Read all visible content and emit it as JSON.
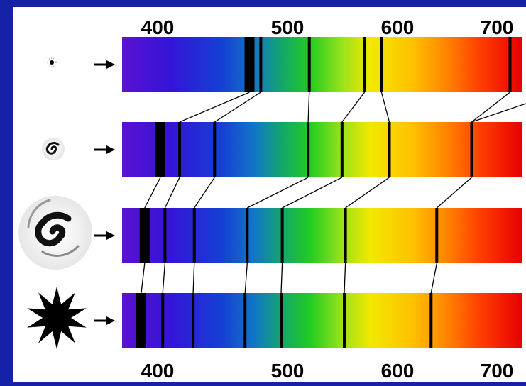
{
  "scale_top": {
    "ticks": [
      "400",
      "500",
      "600",
      "700"
    ]
  },
  "scale_bottom": {
    "ticks": [
      "400",
      "500",
      "600",
      "700"
    ]
  },
  "rows": [
    {
      "icon": "small-star-dot-icon",
      "arrow": "right-arrow-icon",
      "lines_nm": [
        493,
        503,
        546,
        595,
        610,
        724
      ]
    },
    {
      "icon": "small-spiral-galaxy-icon",
      "arrow": "right-arrow-icon",
      "lines_nm": [
        414,
        431,
        462,
        545,
        575,
        617,
        690
      ]
    },
    {
      "icon": "large-spiral-galaxy-icon",
      "arrow": "right-arrow-icon",
      "lines_nm": [
        400,
        418,
        444,
        491,
        522,
        578,
        659
      ]
    },
    {
      "icon": "starburst-icon",
      "arrow": "right-arrow-icon",
      "lines_nm": [
        397,
        416,
        443,
        489,
        521,
        577,
        654
      ]
    }
  ],
  "colors": {
    "background": "#1522a8",
    "panel": "#ffffff",
    "spectrum": [
      "#5a0fcf",
      "#2a1ad6",
      "#1560d0",
      "#10b060",
      "#20d020",
      "#e6e000",
      "#ffc800",
      "#ff7a00",
      "#ff2a00",
      "#e80000"
    ]
  }
}
